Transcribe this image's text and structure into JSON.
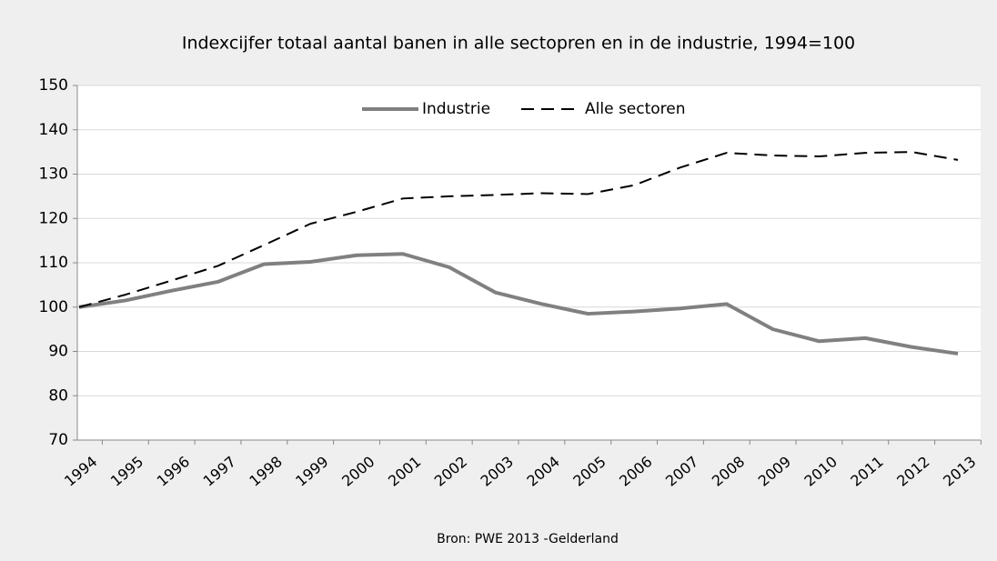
{
  "chart_data": {
    "type": "line",
    "title": "Indexcijfer totaal aantal banen in alle sectopren en in de industrie, 1994=100",
    "source": "Bron: PWE 2013 -Gelderland",
    "categories": [
      "1994",
      "1995",
      "1996",
      "1997",
      "1998",
      "1999",
      "2000",
      "2001",
      "2002",
      "2003",
      "2004",
      "2005",
      "2006",
      "2007",
      "2008",
      "2009",
      "2010",
      "2011",
      "2012",
      "2013"
    ],
    "series": [
      {
        "name": "Industrie",
        "color": "#808080",
        "dash": false,
        "values": [
          100,
          101.5,
          103.7,
          105.7,
          109.7,
          110.2,
          111.7,
          112,
          109,
          103.3,
          100.7,
          98.5,
          99,
          99.7,
          100.7,
          95,
          92.3,
          93,
          91,
          89.5
        ]
      },
      {
        "name": "Alle sectoren",
        "color": "#000000",
        "dash": true,
        "values": [
          100,
          102.8,
          106,
          109.3,
          114,
          118.8,
          121.5,
          124.5,
          125,
          125.3,
          125.7,
          125.5,
          127.5,
          131.5,
          134.8,
          134.2,
          134,
          134.8,
          135,
          133.2
        ]
      }
    ],
    "ylim": [
      70,
      150
    ],
    "yticks": [
      70,
      80,
      90,
      100,
      110,
      120,
      130,
      140,
      150
    ],
    "grid": true,
    "legend": "top"
  }
}
